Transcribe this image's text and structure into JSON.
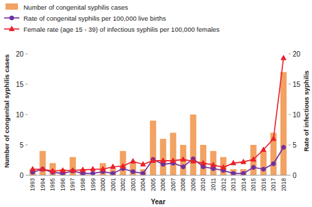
{
  "chart_data": {
    "type": "bar",
    "categories": [
      "1993",
      "1994",
      "1995",
      "1996",
      "1997",
      "1998",
      "1999",
      "2000",
      "2001",
      "2002",
      "2003",
      "2004",
      "2005",
      "2006",
      "2007",
      "2008",
      "2009",
      "2010",
      "2011",
      "2012",
      "2013",
      "2014",
      "2015",
      "2016",
      "2017",
      "2018"
    ],
    "series": [
      {
        "name": "Number of congenital syphilis cases",
        "type": "bar",
        "color": "#f2a262",
        "values": [
          1,
          4,
          2,
          1,
          3,
          1,
          0,
          2,
          1,
          4,
          2,
          1,
          9,
          6,
          7,
          5,
          10,
          5,
          4,
          3,
          1,
          1,
          5,
          4,
          7,
          17
        ]
      },
      {
        "name": "Rate of congenital syphilis per 100,000 live births",
        "type": "line",
        "axis": "y2",
        "color": "#7030a0",
        "marker": "circle",
        "values": [
          0.5,
          1.0,
          0.5,
          0.3,
          0.7,
          0.3,
          0.3,
          0.6,
          0.3,
          1.1,
          0.6,
          0.3,
          2.6,
          1.8,
          2.0,
          1.4,
          2.7,
          1.4,
          1.1,
          0.8,
          0.3,
          0.3,
          1.3,
          1.0,
          1.9,
          4.6
        ]
      },
      {
        "name": "Female rate (age 15 - 39) of infectious syphilis per 100,000 females",
        "type": "line",
        "axis": "y2",
        "color": "#e8212b",
        "marker": "triangle",
        "values": [
          1.0,
          1.0,
          0.7,
          0.8,
          0.8,
          0.9,
          1.0,
          1.0,
          1.4,
          1.5,
          2.3,
          1.8,
          2.4,
          2.4,
          2.4,
          2.6,
          2.3,
          2.0,
          1.7,
          1.3,
          2.0,
          2.2,
          2.6,
          4.2,
          6.0,
          19.3
        ]
      }
    ],
    "x_label": "Year",
    "y_label": "Number of congenital syphilis cases",
    "y2_label": "Rate of infectious syphilis",
    "ylim": [
      0,
      20
    ],
    "yticks": [
      0,
      5,
      10,
      15,
      20
    ],
    "y2lim": [
      0,
      20
    ],
    "y2ticks": [
      0,
      5,
      10,
      15,
      20
    ],
    "legend": "top-left",
    "grid": false
  }
}
